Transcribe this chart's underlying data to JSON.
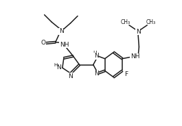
{
  "bg_color": "#ffffff",
  "line_color": "#1a1a1a",
  "line_width": 1.1,
  "font_size": 6.5,
  "figsize": [
    2.65,
    1.84
  ],
  "dpi": 100,
  "xlim": [
    0,
    10.5
  ],
  "ylim": [
    0,
    7.0
  ]
}
